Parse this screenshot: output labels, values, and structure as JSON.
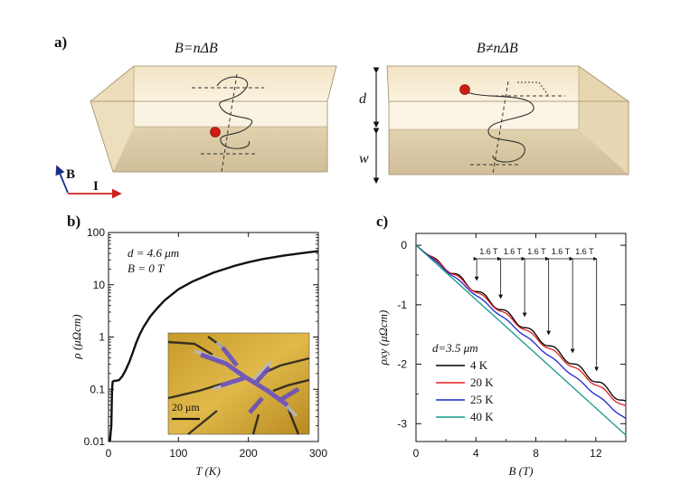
{
  "panel_a": {
    "letter": "a)",
    "left_title": "B=nΔB",
    "right_title": "B≠nΔB",
    "d_label": "d",
    "w_label": "w",
    "b_axis": "B",
    "i_axis": "I"
  },
  "panel_b": {
    "letter": "b)",
    "annotation_1": "d = 4.6 μm",
    "annotation_2": "B = 0 T",
    "scale_bar": "20 μm"
  },
  "panel_c": {
    "letter": "c)",
    "legend_title": "d=3.5 μm",
    "delta_label": "1.6 T"
  },
  "colors": {
    "s4K": "#000000",
    "s20K": "#e02020",
    "s25K": "#1a28c8",
    "s40K": "#179a8a",
    "box_top": "#f5e6c6",
    "box_side": "#d9c59e",
    "electron": "#cc1e12"
  },
  "chart_data": [
    {
      "type": "line",
      "xlabel": "T (K)",
      "ylabel": "ρ (μΩcm)",
      "xlim": [
        0,
        300
      ],
      "ylim": [
        0.01,
        100
      ],
      "yscale": "log",
      "xticks": [
        "0",
        "100",
        "200",
        "300"
      ],
      "yticks": [
        "0.01",
        "0.1",
        "1",
        "10",
        "100"
      ],
      "x": [
        2,
        4,
        5,
        6,
        8,
        10,
        15,
        20,
        25,
        30,
        35,
        40,
        45,
        50,
        60,
        70,
        80,
        100,
        120,
        150,
        180,
        200,
        220,
        250,
        280,
        300
      ],
      "y": [
        0.01,
        0.02,
        0.1,
        0.14,
        0.145,
        0.145,
        0.15,
        0.18,
        0.24,
        0.34,
        0.52,
        0.8,
        1.15,
        1.55,
        2.5,
        3.6,
        5.0,
        8.2,
        11.5,
        17,
        23,
        27,
        31,
        36,
        41,
        44
      ],
      "series": [
        {
          "values": "y"
        }
      ]
    },
    {
      "type": "line",
      "xlabel": "B (T)",
      "ylabel": "ρxy (μΩcm)",
      "xlim": [
        0,
        14
      ],
      "ylim": [
        -3.3,
        0.2
      ],
      "xticks": [
        "0",
        "4",
        "8",
        "12"
      ],
      "yticks": [
        "0",
        "-1",
        "-2",
        "-3"
      ],
      "arrow_fields_T": [
        4.05,
        5.65,
        7.25,
        8.85,
        10.45,
        12.05
      ],
      "series": [
        {
          "name": "4 K",
          "color": "#000000",
          "slope": -0.19,
          "osc_amp": 0.045,
          "osc_period": 1.6
        },
        {
          "name": "20 K",
          "color": "#e02020",
          "slope": -0.195,
          "osc_amp": 0.03,
          "osc_period": 1.6
        },
        {
          "name": "25 K",
          "color": "#1a28c8",
          "slope": -0.209,
          "osc_amp": 0.015,
          "osc_period": 1.6
        },
        {
          "name": "40 K",
          "color": "#179a8a",
          "slope": -0.228,
          "osc_amp": 0.0,
          "osc_period": 1.6
        }
      ]
    }
  ]
}
